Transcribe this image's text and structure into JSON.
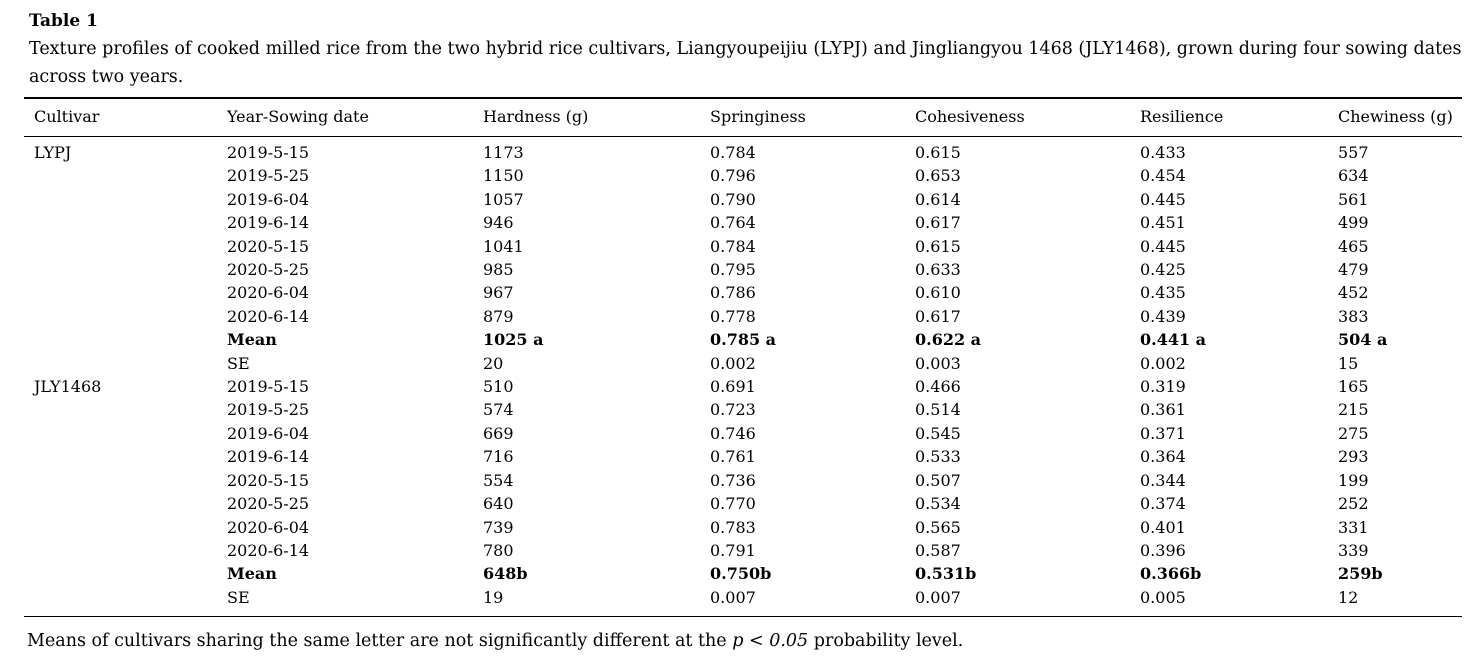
{
  "page": {
    "background_color": "#ffffff",
    "text_color": "#000000"
  },
  "table": {
    "label": "Table 1",
    "caption": "Texture profiles of cooked milled rice from the two hybrid rice cultivars, Liangyoupeijiu (LYPJ) and Jingliangyou 1468 (JLY1468), grown during four sowing dates across two years.",
    "columns": [
      "Cultivar",
      "Year-Sowing date",
      "Hardness (g)",
      "Springiness",
      "Cohesiveness",
      "Resilience",
      "Chewiness (g)"
    ],
    "rows": [
      {
        "cultivar": "LYPJ",
        "sowing": "2019-5-15",
        "hardness": "1173",
        "springiness": "0.784",
        "cohesiveness": "0.615",
        "resilience": "0.433",
        "chewiness": "557",
        "bold": false
      },
      {
        "cultivar": "",
        "sowing": "2019-5-25",
        "hardness": "1150",
        "springiness": "0.796",
        "cohesiveness": "0.653",
        "resilience": "0.454",
        "chewiness": "634",
        "bold": false
      },
      {
        "cultivar": "",
        "sowing": "2019-6-04",
        "hardness": "1057",
        "springiness": "0.790",
        "cohesiveness": "0.614",
        "resilience": "0.445",
        "chewiness": "561",
        "bold": false
      },
      {
        "cultivar": "",
        "sowing": "2019-6-14",
        "hardness": "946",
        "springiness": "0.764",
        "cohesiveness": "0.617",
        "resilience": "0.451",
        "chewiness": "499",
        "bold": false
      },
      {
        "cultivar": "",
        "sowing": "2020-5-15",
        "hardness": "1041",
        "springiness": "0.784",
        "cohesiveness": "0.615",
        "resilience": "0.445",
        "chewiness": "465",
        "bold": false
      },
      {
        "cultivar": "",
        "sowing": "2020-5-25",
        "hardness": "985",
        "springiness": "0.795",
        "cohesiveness": "0.633",
        "resilience": "0.425",
        "chewiness": "479",
        "bold": false
      },
      {
        "cultivar": "",
        "sowing": "2020-6-04",
        "hardness": "967",
        "springiness": "0.786",
        "cohesiveness": "0.610",
        "resilience": "0.435",
        "chewiness": "452",
        "bold": false
      },
      {
        "cultivar": "",
        "sowing": "2020-6-14",
        "hardness": "879",
        "springiness": "0.778",
        "cohesiveness": "0.617",
        "resilience": "0.439",
        "chewiness": "383",
        "bold": false
      },
      {
        "cultivar": "",
        "sowing": "Mean",
        "hardness": "1025 a",
        "springiness": "0.785 a",
        "cohesiveness": "0.622 a",
        "resilience": "0.441 a",
        "chewiness": "504 a",
        "bold": true
      },
      {
        "cultivar": "",
        "sowing": "SE",
        "hardness": "20",
        "springiness": "0.002",
        "cohesiveness": "0.003",
        "resilience": "0.002",
        "chewiness": "15",
        "bold": false
      },
      {
        "cultivar": "JLY1468",
        "sowing": "2019-5-15",
        "hardness": "510",
        "springiness": "0.691",
        "cohesiveness": "0.466",
        "resilience": "0.319",
        "chewiness": "165",
        "bold": false
      },
      {
        "cultivar": "",
        "sowing": "2019-5-25",
        "hardness": "574",
        "springiness": "0.723",
        "cohesiveness": "0.514",
        "resilience": "0.361",
        "chewiness": "215",
        "bold": false
      },
      {
        "cultivar": "",
        "sowing": "2019-6-04",
        "hardness": "669",
        "springiness": "0.746",
        "cohesiveness": "0.545",
        "resilience": "0.371",
        "chewiness": "275",
        "bold": false
      },
      {
        "cultivar": "",
        "sowing": "2019-6-14",
        "hardness": "716",
        "springiness": "0.761",
        "cohesiveness": "0.533",
        "resilience": "0.364",
        "chewiness": "293",
        "bold": false
      },
      {
        "cultivar": "",
        "sowing": "2020-5-15",
        "hardness": "554",
        "springiness": "0.736",
        "cohesiveness": "0.507",
        "resilience": "0.344",
        "chewiness": "199",
        "bold": false
      },
      {
        "cultivar": "",
        "sowing": "2020-5-25",
        "hardness": "640",
        "springiness": "0.770",
        "cohesiveness": "0.534",
        "resilience": "0.374",
        "chewiness": "252",
        "bold": false
      },
      {
        "cultivar": "",
        "sowing": "2020-6-04",
        "hardness": "739",
        "springiness": "0.783",
        "cohesiveness": "0.565",
        "resilience": "0.401",
        "chewiness": "331",
        "bold": false
      },
      {
        "cultivar": "",
        "sowing": "2020-6-14",
        "hardness": "780",
        "springiness": "0.791",
        "cohesiveness": "0.587",
        "resilience": "0.396",
        "chewiness": "339",
        "bold": false
      },
      {
        "cultivar": "",
        "sowing": "Mean",
        "hardness": "648b",
        "springiness": "0.750b",
        "cohesiveness": "0.531b",
        "resilience": "0.366b",
        "chewiness": "259b",
        "bold": true
      },
      {
        "cultivar": "",
        "sowing": "SE",
        "hardness": "19",
        "springiness": "0.007",
        "cohesiveness": "0.007",
        "resilience": "0.005",
        "chewiness": "12",
        "bold": false
      }
    ],
    "footnote": {
      "prefix": "Means of cultivars sharing the same letter are not significantly different at the ",
      "italic": "p < 0.05",
      "suffix": " probability level."
    }
  }
}
